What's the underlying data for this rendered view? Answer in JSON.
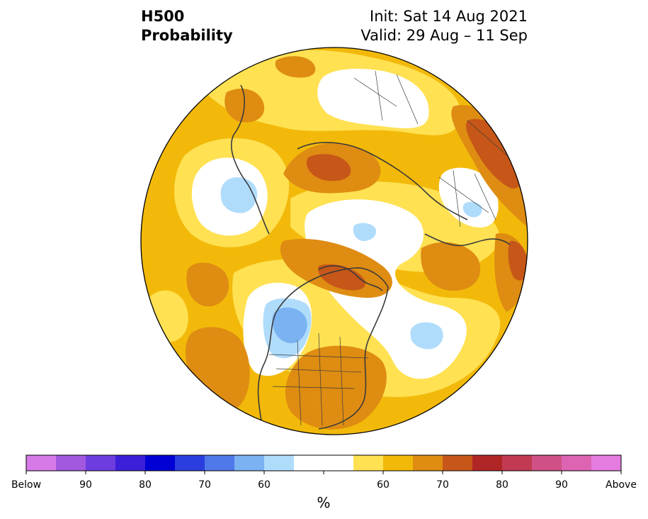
{
  "title": {
    "left_line1": "H500",
    "left_line2": "Probability",
    "right_line1": "Init: Sat 14 Aug 2021",
    "right_line2": "Valid: 29 Aug – 11 Sep"
  },
  "colorbar": {
    "unit": "%",
    "colors": [
      "#d67ae8",
      "#a259e0",
      "#6e3de0",
      "#3c1fd8",
      "#0000d4",
      "#2a3ee0",
      "#4f78e8",
      "#7ab2f2",
      "#b0dcfc",
      "#ffffff",
      "#ffffff",
      "#ffe152",
      "#f2b90a",
      "#de8c12",
      "#c65718",
      "#b02626",
      "#c23a52",
      "#cf5185",
      "#dc64b2",
      "#e57ce0"
    ],
    "labels": [
      "Below",
      "90",
      "80",
      "70",
      "60",
      "60",
      "70",
      "80",
      "90",
      "Above"
    ]
  },
  "legend_palette": {
    "white": "#ffffff",
    "light_yellow": "#ffe152",
    "gold": "#f2b90a",
    "orange": "#de8c12",
    "dark_orange": "#c65718",
    "light_blue": "#b0dcfc",
    "blue": "#7ab2f2",
    "mid_blue": "#4f78e8"
  }
}
